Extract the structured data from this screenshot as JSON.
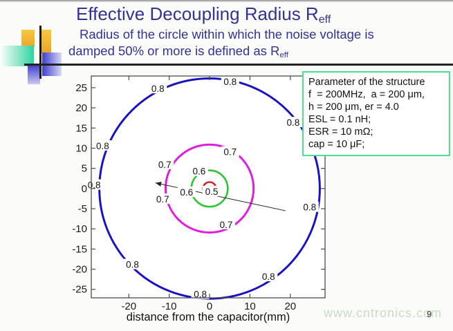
{
  "slide": {
    "title_main": "Effective Decoupling Radius R",
    "title_sub": "eff",
    "subtitle_line1": "Radius of the circle within which the noise voltage is",
    "subtitle_line2_main": "damped 50% or more is defined as R",
    "subtitle_line2_sub": "eff",
    "title_color": "#333391",
    "page_number": "9",
    "watermark": "www.cntronics.com",
    "watermark_color": "#c9dcc3"
  },
  "param_box": {
    "border_color": "#4ce08e",
    "lines": [
      "Parameter of the structure",
      "f  = 200MHz,  a = 200 μm,",
      "h = 200 μm, er = 4.0",
      "ESL = 0.1 nH;",
      "ESR = 10 mΩ;",
      "cap = 10 μF;"
    ]
  },
  "chart_data": {
    "type": "contour",
    "title": "",
    "xlabel": "distance from the capacitor(mm)",
    "ylabel": "",
    "x_ticks": [
      -20,
      -10,
      0,
      10,
      20
    ],
    "y_ticks": [
      25,
      20,
      15,
      10,
      5,
      0,
      -5,
      -10,
      -15,
      -20,
      -25
    ],
    "xlim": [
      -29.3,
      28.6
    ],
    "ylim": [
      -27.1,
      27.9
    ],
    "grid": false,
    "legend": "none",
    "axis_color": "#4a4a4a",
    "center_marker": {
      "x": 0,
      "y": 0,
      "color": "#8d9cf0"
    },
    "arrow": {
      "x1": 18.8,
      "y1": -5.5,
      "x2": -13.4,
      "y2": 1.4,
      "color": "#222222"
    },
    "contours": [
      {
        "level": "0.8",
        "radius_mm": 27.3,
        "color": "#1812c4",
        "width": 3,
        "labels": [
          {
            "x": -12.8,
            "y": 24.8
          },
          {
            "x": 5.1,
            "y": 26.5
          },
          {
            "x": 20.7,
            "y": 16.4
          },
          {
            "x": -26.5,
            "y": 10.6
          },
          {
            "x": -28.6,
            "y": 0.9
          },
          {
            "x": 24.8,
            "y": -4.6
          },
          {
            "x": -19.1,
            "y": -18.8
          },
          {
            "x": -2.3,
            "y": -26.2
          },
          {
            "x": 14.6,
            "y": -21.8
          }
        ]
      },
      {
        "level": "0.7",
        "radius_mm": 10.9,
        "color": "#df1ddf",
        "width": 3,
        "labels": [
          {
            "x": 5.1,
            "y": 9.1
          },
          {
            "x": -11.1,
            "y": 6.0
          },
          {
            "x": -11.6,
            "y": -2.6
          },
          {
            "x": 4.1,
            "y": -8.9
          }
        ]
      },
      {
        "level": "0.6",
        "radius_mm": 4.5,
        "color": "#2dc52d",
        "width": 2.6,
        "labels": [
          {
            "x": -2.6,
            "y": 4.3
          },
          {
            "x": -5.7,
            "y": -0.9
          }
        ]
      },
      {
        "level": "0.5",
        "radius_mm": 1.6,
        "color": "#d22222",
        "width": 2.6,
        "labels": [
          {
            "x": 0.5,
            "y": -0.7
          }
        ]
      }
    ]
  }
}
